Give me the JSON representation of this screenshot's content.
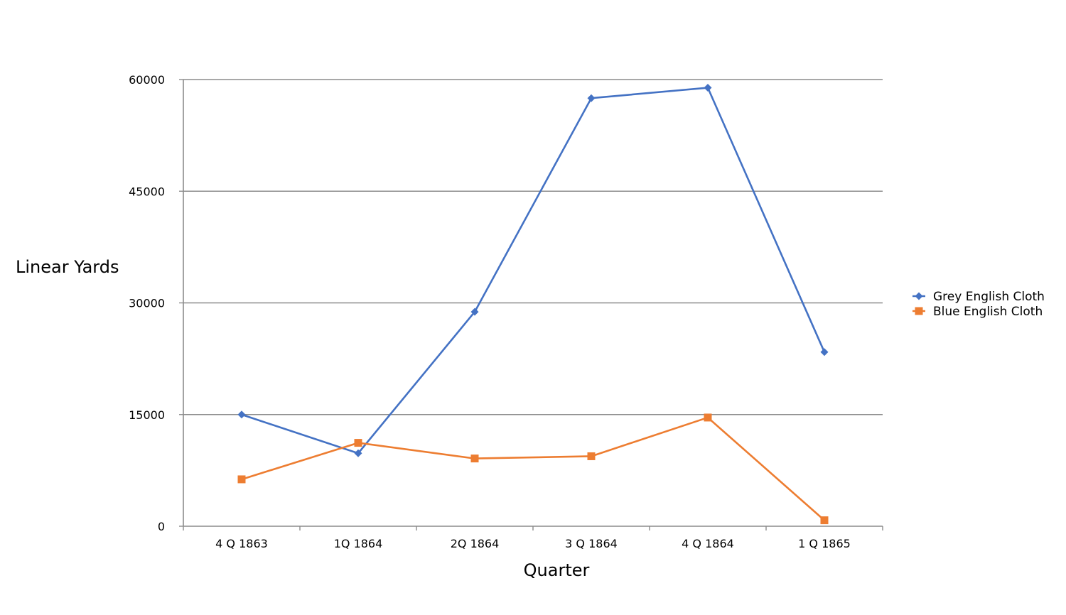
{
  "chart_data": {
    "type": "line",
    "title": "",
    "xlabel": "Quarter",
    "ylabel": "Linear Yards",
    "categories": [
      "4 Q 1863",
      "1Q 1864",
      "2Q 1864",
      "3 Q 1864",
      "4 Q 1864",
      "1 Q 1865"
    ],
    "ylim": [
      0,
      60000
    ],
    "yticks": [
      0,
      15000,
      30000,
      45000,
      60000
    ],
    "grid": true,
    "legend_position": "right",
    "series": [
      {
        "name": "Grey English Cloth",
        "values": [
          15000,
          9800,
          28800,
          57500,
          58900,
          23400
        ],
        "color": "#4472C4",
        "marker": "diamond"
      },
      {
        "name": "Blue English Cloth",
        "values": [
          6300,
          11200,
          9100,
          9400,
          14600,
          800
        ],
        "color": "#ED7D31",
        "marker": "square"
      }
    ]
  }
}
